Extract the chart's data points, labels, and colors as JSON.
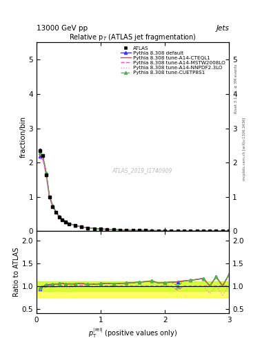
{
  "title_top": "13000 GeV pp",
  "title_right": "Jets",
  "plot_title": "Relative p$_{T}$ (ATLAS jet fragmentation)",
  "ylabel_main": "fraction/bin",
  "ylabel_ratio": "Ratio to ATLAS",
  "watermark": "ATLAS_2019_I1740909",
  "right_label": "mcplots.cern.ch [arXiv:1306.3436]",
  "right_label2": "Rivet 3.1.10, ≥ 3M events",
  "xlim": [
    0,
    3
  ],
  "ylim_main": [
    0,
    5.5
  ],
  "ylim_ratio": [
    0.4,
    2.2
  ],
  "yticks_main": [
    0,
    1,
    2,
    3,
    4,
    5
  ],
  "yticks_ratio": [
    0.5,
    1.0,
    1.5,
    2.0
  ],
  "xticks": [
    0,
    1,
    2,
    3
  ],
  "x_data": [
    0.05,
    0.1,
    0.15,
    0.2,
    0.25,
    0.3,
    0.35,
    0.4,
    0.45,
    0.5,
    0.6,
    0.7,
    0.8,
    0.9,
    1.0,
    1.1,
    1.2,
    1.3,
    1.4,
    1.5,
    1.6,
    1.7,
    1.8,
    1.9,
    2.0,
    2.1,
    2.2,
    2.3,
    2.4,
    2.5,
    2.6,
    2.7,
    2.8,
    2.9,
    3.0
  ],
  "atlas_y": [
    2.35,
    2.2,
    1.65,
    1.0,
    0.72,
    0.55,
    0.42,
    0.33,
    0.27,
    0.22,
    0.16,
    0.12,
    0.096,
    0.077,
    0.063,
    0.052,
    0.044,
    0.037,
    0.032,
    0.028,
    0.024,
    0.021,
    0.018,
    0.016,
    0.014,
    0.012,
    0.011,
    0.009,
    0.008,
    0.007,
    0.006,
    0.006,
    0.005,
    0.005,
    0.004
  ],
  "atlas_err": [
    0.05,
    0.04,
    0.03,
    0.02,
    0.015,
    0.012,
    0.01,
    0.008,
    0.007,
    0.006,
    0.004,
    0.003,
    0.003,
    0.002,
    0.002,
    0.002,
    0.001,
    0.001,
    0.001,
    0.001,
    0.001,
    0.001,
    0.001,
    0.001,
    0.001,
    0.001,
    0.001,
    0.001,
    0.001,
    0.001,
    0.001,
    0.001,
    0.001,
    0.001,
    0.001
  ],
  "pythia_default_y": [
    2.19,
    2.15,
    1.68,
    1.02,
    0.74,
    0.57,
    0.44,
    0.35,
    0.28,
    0.23,
    0.167,
    0.127,
    0.099,
    0.08,
    0.066,
    0.055,
    0.046,
    0.039,
    0.034,
    0.03,
    0.026,
    0.023,
    0.02,
    0.017,
    0.015,
    0.013,
    0.012,
    0.01,
    0.009,
    0.008,
    0.007,
    0.006,
    0.006,
    0.005,
    0.005
  ],
  "pythia_cteql1_y": [
    2.22,
    2.17,
    1.69,
    1.03,
    0.75,
    0.57,
    0.44,
    0.35,
    0.28,
    0.23,
    0.167,
    0.127,
    0.099,
    0.08,
    0.066,
    0.055,
    0.046,
    0.039,
    0.034,
    0.03,
    0.026,
    0.023,
    0.02,
    0.017,
    0.015,
    0.013,
    0.012,
    0.01,
    0.009,
    0.008,
    0.007,
    0.006,
    0.006,
    0.005,
    0.005
  ],
  "pythia_mstw_y": [
    2.13,
    2.09,
    1.62,
    0.98,
    0.71,
    0.54,
    0.42,
    0.33,
    0.27,
    0.22,
    0.16,
    0.122,
    0.095,
    0.076,
    0.063,
    0.052,
    0.044,
    0.037,
    0.032,
    0.028,
    0.024,
    0.021,
    0.018,
    0.016,
    0.014,
    0.012,
    0.01,
    0.009,
    0.008,
    0.007,
    0.006,
    0.006,
    0.005,
    0.005,
    0.004
  ],
  "pythia_nnpdf_y": [
    2.11,
    2.07,
    1.61,
    0.97,
    0.7,
    0.53,
    0.41,
    0.32,
    0.26,
    0.21,
    0.158,
    0.12,
    0.094,
    0.075,
    0.062,
    0.051,
    0.043,
    0.037,
    0.032,
    0.028,
    0.024,
    0.021,
    0.018,
    0.016,
    0.014,
    0.012,
    0.01,
    0.009,
    0.008,
    0.007,
    0.006,
    0.005,
    0.005,
    0.004,
    0.004
  ],
  "pythia_cuetp_y": [
    2.28,
    2.22,
    1.7,
    1.03,
    0.75,
    0.57,
    0.44,
    0.35,
    0.28,
    0.23,
    0.167,
    0.127,
    0.099,
    0.08,
    0.066,
    0.055,
    0.046,
    0.039,
    0.034,
    0.03,
    0.026,
    0.023,
    0.02,
    0.017,
    0.015,
    0.013,
    0.011,
    0.01,
    0.009,
    0.008,
    0.007,
    0.006,
    0.006,
    0.005,
    0.005
  ],
  "color_atlas": "#000000",
  "color_default": "#3333ff",
  "color_cteql1": "#ff3333",
  "color_mstw": "#ff44cc",
  "color_nnpdf": "#ff88dd",
  "color_cuetp": "#44bb44",
  "legend_entries": [
    "ATLAS",
    "Pythia 8.308 default",
    "Pythia 8.308 tune-A14-CTEQL1",
    "Pythia 8.308 tune-A14-MSTW2008LO",
    "Pythia 8.308 tune-A14-NNPDF2.3LO",
    "Pythia 8.308 tune-CUETP8S1"
  ]
}
